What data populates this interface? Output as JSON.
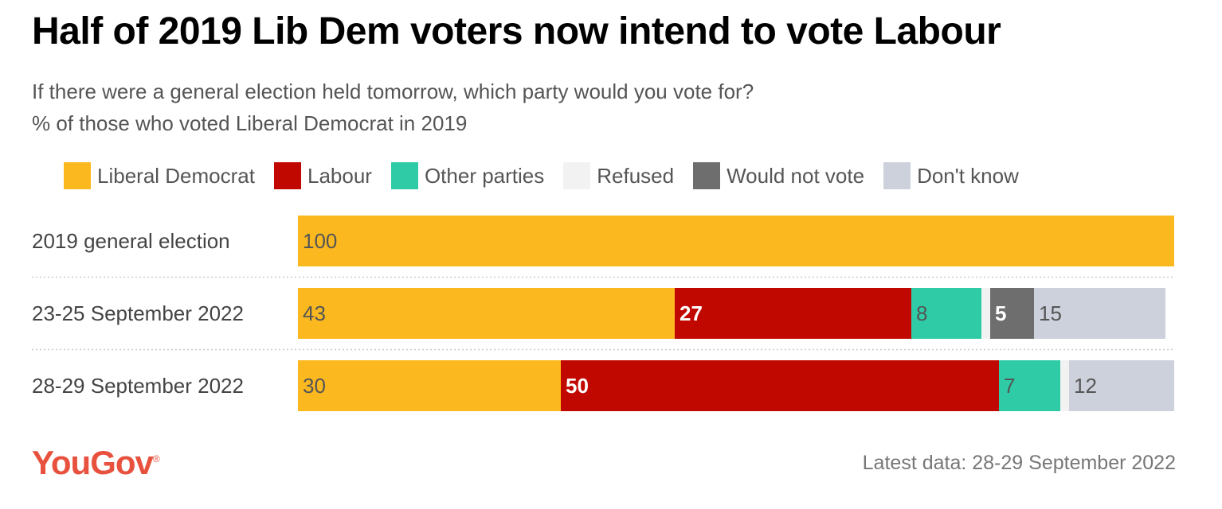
{
  "title": "Half of 2019 Lib Dem voters now intend to vote Labour",
  "subtitle_1": "If there were a general election held tomorrow, which party would you vote for?",
  "subtitle_2": "% of those who voted Liberal Democrat in 2019",
  "legend": [
    {
      "label": "Liberal Democrat",
      "color": "#fbb81f"
    },
    {
      "label": "Labour",
      "color": "#c00800"
    },
    {
      "label": "Other parties",
      "color": "#2ecba6"
    },
    {
      "label": "Refused",
      "color": "#f2f2f2"
    },
    {
      "label": "Would not vote",
      "color": "#6e6e6e"
    },
    {
      "label": "Don't know",
      "color": "#cdd1dc"
    }
  ],
  "chart_data": {
    "type": "bar",
    "orientation": "horizontal",
    "stacked": true,
    "categories": [
      "2019 general election",
      "23-25 September 2022",
      "28-29 September 2022"
    ],
    "series": [
      {
        "name": "Liberal Democrat",
        "values": [
          100,
          43,
          30
        ],
        "color": "#fbb81f",
        "label_color": "#555555",
        "bold": false
      },
      {
        "name": "Labour",
        "values": [
          0,
          27,
          50
        ],
        "color": "#c00800",
        "label_color": "#ffffff",
        "bold": true
      },
      {
        "name": "Other parties",
        "values": [
          0,
          8,
          7
        ],
        "color": "#2ecba6",
        "label_color": "#555555",
        "bold": false
      },
      {
        "name": "Refused",
        "values": [
          0,
          1,
          1
        ],
        "color": "#f2f2f2",
        "label_color": "#555555",
        "bold": false
      },
      {
        "name": "Would not vote",
        "values": [
          0,
          5,
          0
        ],
        "color": "#6e6e6e",
        "label_color": "#ffffff",
        "bold": true
      },
      {
        "name": "Don't know",
        "values": [
          0,
          15,
          12
        ],
        "color": "#cdd1dc",
        "label_color": "#555555",
        "bold": false
      }
    ],
    "labels": [
      [
        "100",
        "",
        "",
        "",
        "",
        ""
      ],
      [
        "43",
        "27",
        "8",
        "",
        "5",
        "15"
      ],
      [
        "30",
        "50",
        "7",
        "",
        "",
        "12"
      ]
    ],
    "xlim": [
      0,
      100
    ]
  },
  "source": "YouGov",
  "footer": "Latest data: 28-29 September 2022"
}
